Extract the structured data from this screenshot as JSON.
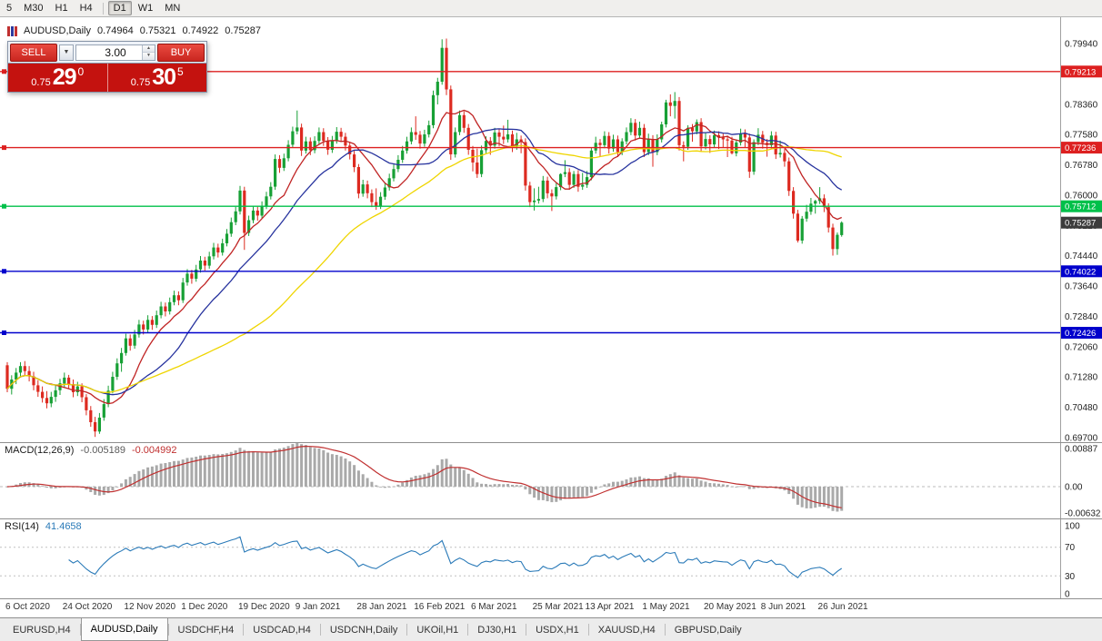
{
  "toolbar": {
    "timeframes": [
      "5",
      "M30",
      "H1",
      "H4",
      "D1",
      "W1",
      "MN"
    ],
    "active": "D1",
    "group_break_after": "H4"
  },
  "chart": {
    "ohlc_line": {
      "symbol": "AUDUSD,Daily",
      "open": "0.74964",
      "high": "0.75321",
      "low": "0.74922",
      "close": "0.75287"
    }
  },
  "trade_panel": {
    "sell_label": "SELL",
    "buy_label": "BUY",
    "volume": "3.00",
    "sell_price_main": "0.75",
    "sell_price_big": "29",
    "sell_price_sup": "0",
    "buy_price_main": "0.75",
    "buy_price_big": "30",
    "buy_price_sup": "5"
  },
  "indicators": {
    "macd": {
      "label": "MACD(12,26,9)",
      "main_value": "-0.005189",
      "signal_value": "-0.004992"
    },
    "rsi": {
      "label": "RSI(14)",
      "value": "41.4658"
    }
  },
  "tabs": {
    "items": [
      "EURUSD,H4",
      "AUDUSD,Daily",
      "USDCHF,H4",
      "USDCAD,H4",
      "USDCNH,Daily",
      "UKOil,H1",
      "DJ30,H1",
      "USDX,H1",
      "XAUUSD,H4",
      "GBPUSD,Daily"
    ],
    "active": "AUDUSD,Daily"
  },
  "chart_data": {
    "type": "candlestick",
    "title": "AUDUSD,Daily",
    "x_tick_labels": [
      "6 Oct 2020",
      "24 Oct 2020",
      "12 Nov 2020",
      "1 Dec 2020",
      "19 Dec 2020",
      "9 Jan 2021",
      "28 Jan 2021",
      "16 Feb 2021",
      "6 Mar 2021",
      "25 Mar 2021",
      "13 Apr 2021",
      "1 May 2021",
      "20 May 2021",
      "8 Jun 2021",
      "26 Jun 2021"
    ],
    "x_tick_indices": [
      0,
      13,
      27,
      40,
      53,
      66,
      80,
      93,
      106,
      120,
      132,
      145,
      159,
      172,
      185
    ],
    "y_axis": {
      "min": 0.697,
      "max": 0.7994,
      "tick_labels": [
        "0.79940",
        "0.79240",
        "0.78360",
        "0.77580",
        "0.76780",
        "0.76000",
        "0.75220",
        "0.74440",
        "0.73640",
        "0.72840",
        "0.72060",
        "0.71280",
        "0.70480",
        "0.69700"
      ]
    },
    "up_color": "#17a035",
    "down_color": "#dd2a20",
    "moving_averages": [
      {
        "name": "MA-fast",
        "period": 10,
        "color": "#c02424"
      },
      {
        "name": "MA-mid",
        "period": 21,
        "color": "#27339e"
      },
      {
        "name": "MA-slow",
        "period": 55,
        "color": "#efd500"
      }
    ],
    "hlines": [
      {
        "price": 0.79213,
        "label": "0.79213",
        "color": "#dd2020"
      },
      {
        "price": 0.77236,
        "label": "0.77236",
        "color": "#dd2020"
      },
      {
        "price": 0.75712,
        "label": "0.75712",
        "color": "#00c04a"
      },
      {
        "price": 0.74022,
        "label": "0.74022",
        "color": "#0000cc"
      },
      {
        "price": 0.72426,
        "label": "0.72426",
        "color": "#0000cc"
      }
    ],
    "current_price": {
      "value": 0.75287,
      "label": "0.75287",
      "bg": "#3c3c3c"
    },
    "macd": {
      "params": [
        12,
        26,
        9
      ],
      "hist_color": "#a9a9a9",
      "signal_color": "#c03030",
      "axis_ticks": [
        0.00887,
        0,
        -0.00632
      ],
      "axis_labels": [
        "0.00887",
        "0.00",
        "-0.00632"
      ]
    },
    "rsi": {
      "period": 14,
      "color": "#2a7ab8",
      "levels": [
        70,
        30
      ],
      "axis_ticks": [
        100,
        70,
        30,
        0
      ],
      "axis_labels": [
        "100",
        "70",
        "30",
        "0"
      ]
    },
    "ohlc": [
      [
        0.7158,
        0.7166,
        0.7088,
        0.7097
      ],
      [
        0.7097,
        0.7132,
        0.7082,
        0.7121
      ],
      [
        0.7121,
        0.7151,
        0.7109,
        0.7139
      ],
      [
        0.7139,
        0.7166,
        0.7126,
        0.7156
      ],
      [
        0.7156,
        0.7169,
        0.7131,
        0.7143
      ],
      [
        0.7143,
        0.7156,
        0.7116,
        0.7129
      ],
      [
        0.7129,
        0.7141,
        0.7093,
        0.7106
      ],
      [
        0.7106,
        0.7119,
        0.7076,
        0.7089
      ],
      [
        0.7089,
        0.7103,
        0.7061,
        0.7073
      ],
      [
        0.7073,
        0.7091,
        0.7046,
        0.7059
      ],
      [
        0.7059,
        0.7089,
        0.7049,
        0.7076
      ],
      [
        0.7076,
        0.7106,
        0.7063,
        0.7093
      ],
      [
        0.7093,
        0.7123,
        0.7081,
        0.7111
      ],
      [
        0.7111,
        0.7139,
        0.7099,
        0.7126
      ],
      [
        0.7126,
        0.7133,
        0.7098,
        0.7109
      ],
      [
        0.7109,
        0.7121,
        0.7075,
        0.7088
      ],
      [
        0.7088,
        0.7115,
        0.7078,
        0.7103
      ],
      [
        0.7103,
        0.7111,
        0.7062,
        0.7075
      ],
      [
        0.7075,
        0.7083,
        0.7028,
        0.7041
      ],
      [
        0.7041,
        0.7052,
        0.6998,
        0.701
      ],
      [
        0.701,
        0.7024,
        0.6972,
        0.6986
      ],
      [
        0.6986,
        0.7034,
        0.698,
        0.7022
      ],
      [
        0.7022,
        0.707,
        0.7014,
        0.7057
      ],
      [
        0.7057,
        0.7105,
        0.7049,
        0.7092
      ],
      [
        0.7092,
        0.7141,
        0.7085,
        0.7128
      ],
      [
        0.7128,
        0.7176,
        0.712,
        0.7163
      ],
      [
        0.7163,
        0.7203,
        0.7141,
        0.719
      ],
      [
        0.719,
        0.724,
        0.7183,
        0.7228
      ],
      [
        0.7228,
        0.7238,
        0.7196,
        0.7209
      ],
      [
        0.7209,
        0.725,
        0.7201,
        0.7238
      ],
      [
        0.7238,
        0.7276,
        0.723,
        0.7264
      ],
      [
        0.7264,
        0.7274,
        0.7238,
        0.7251
      ],
      [
        0.7251,
        0.7288,
        0.7243,
        0.7276
      ],
      [
        0.7276,
        0.7286,
        0.725,
        0.7263
      ],
      [
        0.7263,
        0.73,
        0.7255,
        0.7288
      ],
      [
        0.7288,
        0.7323,
        0.728,
        0.7311
      ],
      [
        0.7311,
        0.7321,
        0.7285,
        0.7298
      ],
      [
        0.7298,
        0.7334,
        0.729,
        0.7322
      ],
      [
        0.7322,
        0.7352,
        0.7314,
        0.734
      ],
      [
        0.734,
        0.735,
        0.7314,
        0.7327
      ],
      [
        0.7327,
        0.7385,
        0.732,
        0.7373
      ],
      [
        0.7373,
        0.7408,
        0.7365,
        0.7396
      ],
      [
        0.7396,
        0.7406,
        0.737,
        0.7383
      ],
      [
        0.7383,
        0.7419,
        0.7375,
        0.7407
      ],
      [
        0.7407,
        0.7442,
        0.7399,
        0.743
      ],
      [
        0.743,
        0.744,
        0.7404,
        0.7417
      ],
      [
        0.7417,
        0.7453,
        0.7409,
        0.7441
      ],
      [
        0.7441,
        0.7476,
        0.7433,
        0.7464
      ],
      [
        0.7464,
        0.7474,
        0.7438,
        0.7451
      ],
      [
        0.7451,
        0.7487,
        0.7443,
        0.7475
      ],
      [
        0.7475,
        0.7512,
        0.7467,
        0.75
      ],
      [
        0.75,
        0.7542,
        0.7492,
        0.753
      ],
      [
        0.753,
        0.757,
        0.7522,
        0.7558
      ],
      [
        0.7558,
        0.7624,
        0.755,
        0.7612
      ],
      [
        0.7612,
        0.7622,
        0.7458,
        0.7502
      ],
      [
        0.7502,
        0.7547,
        0.7494,
        0.7535
      ],
      [
        0.7535,
        0.7572,
        0.7527,
        0.756
      ],
      [
        0.756,
        0.757,
        0.7534,
        0.7547
      ],
      [
        0.7547,
        0.7584,
        0.7539,
        0.7572
      ],
      [
        0.7572,
        0.7609,
        0.7564,
        0.7597
      ],
      [
        0.7597,
        0.7634,
        0.7589,
        0.7622
      ],
      [
        0.7622,
        0.7706,
        0.7614,
        0.7694
      ],
      [
        0.7694,
        0.7704,
        0.7658,
        0.7671
      ],
      [
        0.7671,
        0.7708,
        0.7663,
        0.7696
      ],
      [
        0.7696,
        0.7743,
        0.7688,
        0.7731
      ],
      [
        0.7731,
        0.7778,
        0.7723,
        0.7766
      ],
      [
        0.7766,
        0.782,
        0.7758,
        0.7776
      ],
      [
        0.7776,
        0.7786,
        0.7702,
        0.7716
      ],
      [
        0.7716,
        0.7752,
        0.7708,
        0.774
      ],
      [
        0.774,
        0.775,
        0.7704,
        0.7717
      ],
      [
        0.7717,
        0.7753,
        0.7709,
        0.7741
      ],
      [
        0.7741,
        0.7776,
        0.7733,
        0.7764
      ],
      [
        0.7764,
        0.7774,
        0.7728,
        0.7741
      ],
      [
        0.7741,
        0.7751,
        0.7705,
        0.7718
      ],
      [
        0.7718,
        0.7754,
        0.771,
        0.7742
      ],
      [
        0.7742,
        0.7777,
        0.7734,
        0.7765
      ],
      [
        0.7765,
        0.7775,
        0.7739,
        0.7752
      ],
      [
        0.7752,
        0.7762,
        0.7716,
        0.7729
      ],
      [
        0.7729,
        0.7739,
        0.7693,
        0.7706
      ],
      [
        0.7706,
        0.7716,
        0.766,
        0.7673
      ],
      [
        0.7673,
        0.7681,
        0.7592,
        0.7604
      ],
      [
        0.7604,
        0.764,
        0.7596,
        0.7628
      ],
      [
        0.7628,
        0.7638,
        0.7592,
        0.7605
      ],
      [
        0.7605,
        0.7615,
        0.7569,
        0.7582
      ],
      [
        0.7582,
        0.7618,
        0.7562,
        0.7572
      ],
      [
        0.7572,
        0.7608,
        0.7564,
        0.7596
      ],
      [
        0.7596,
        0.7632,
        0.7588,
        0.762
      ],
      [
        0.762,
        0.7656,
        0.7612,
        0.7644
      ],
      [
        0.7644,
        0.768,
        0.7636,
        0.7668
      ],
      [
        0.7668,
        0.7704,
        0.766,
        0.7692
      ],
      [
        0.7692,
        0.7728,
        0.7684,
        0.7716
      ],
      [
        0.7716,
        0.7752,
        0.7708,
        0.774
      ],
      [
        0.774,
        0.7776,
        0.7732,
        0.7764
      ],
      [
        0.7764,
        0.7805,
        0.7744,
        0.7757
      ],
      [
        0.7757,
        0.7767,
        0.7721,
        0.7734
      ],
      [
        0.7734,
        0.777,
        0.7726,
        0.7758
      ],
      [
        0.7758,
        0.7794,
        0.775,
        0.7782
      ],
      [
        0.7782,
        0.7872,
        0.7774,
        0.786
      ],
      [
        0.786,
        0.7905,
        0.7836,
        0.7895
      ],
      [
        0.7895,
        0.8005,
        0.7887,
        0.7983
      ],
      [
        0.7983,
        0.8007,
        0.786,
        0.7875
      ],
      [
        0.7875,
        0.7885,
        0.7692,
        0.7706
      ],
      [
        0.7706,
        0.7776,
        0.7698,
        0.7764
      ],
      [
        0.7764,
        0.782,
        0.7756,
        0.7808
      ],
      [
        0.7808,
        0.7818,
        0.7762,
        0.7775
      ],
      [
        0.7775,
        0.7785,
        0.7705,
        0.7718
      ],
      [
        0.7718,
        0.7728,
        0.7662,
        0.7685
      ],
      [
        0.7685,
        0.7721,
        0.7645,
        0.7655
      ],
      [
        0.7655,
        0.7729,
        0.7647,
        0.7717
      ],
      [
        0.7717,
        0.7753,
        0.7709,
        0.7741
      ],
      [
        0.7741,
        0.7751,
        0.7705,
        0.7729
      ],
      [
        0.7729,
        0.7775,
        0.7721,
        0.7763
      ],
      [
        0.7763,
        0.7773,
        0.7727,
        0.7752
      ],
      [
        0.7752,
        0.7781,
        0.7733,
        0.7745
      ],
      [
        0.7745,
        0.7796,
        0.7737,
        0.7758
      ],
      [
        0.7758,
        0.7768,
        0.7712,
        0.7726
      ],
      [
        0.7726,
        0.7762,
        0.7718,
        0.7745
      ],
      [
        0.7745,
        0.7755,
        0.7709,
        0.7738
      ],
      [
        0.7738,
        0.7748,
        0.7612,
        0.7625
      ],
      [
        0.7625,
        0.7635,
        0.7569,
        0.7582
      ],
      [
        0.7582,
        0.7618,
        0.756,
        0.7586
      ],
      [
        0.7586,
        0.7622,
        0.7578,
        0.759
      ],
      [
        0.759,
        0.765,
        0.7582,
        0.7638
      ],
      [
        0.7638,
        0.7648,
        0.7592,
        0.7605
      ],
      [
        0.7605,
        0.7615,
        0.7559,
        0.7597
      ],
      [
        0.7597,
        0.7633,
        0.7589,
        0.7621
      ],
      [
        0.7621,
        0.7657,
        0.7613,
        0.7655
      ],
      [
        0.7655,
        0.7691,
        0.7647,
        0.766
      ],
      [
        0.766,
        0.767,
        0.7614,
        0.7627
      ],
      [
        0.7627,
        0.7663,
        0.7619,
        0.7655
      ],
      [
        0.7655,
        0.7665,
        0.7609,
        0.7622
      ],
      [
        0.7622,
        0.7658,
        0.7614,
        0.7627
      ],
      [
        0.7627,
        0.7663,
        0.7619,
        0.7647
      ],
      [
        0.7647,
        0.7723,
        0.7639,
        0.7716
      ],
      [
        0.7716,
        0.7752,
        0.7708,
        0.7736
      ],
      [
        0.7736,
        0.7746,
        0.77,
        0.773
      ],
      [
        0.773,
        0.7766,
        0.7722,
        0.7754
      ],
      [
        0.7754,
        0.7764,
        0.7708,
        0.7721
      ],
      [
        0.7721,
        0.7757,
        0.7713,
        0.7745
      ],
      [
        0.7745,
        0.7755,
        0.7699,
        0.7712
      ],
      [
        0.7712,
        0.7748,
        0.7704,
        0.774
      ],
      [
        0.774,
        0.7776,
        0.7732,
        0.7764
      ],
      [
        0.7764,
        0.78,
        0.7756,
        0.7788
      ],
      [
        0.7788,
        0.7798,
        0.7742,
        0.7755
      ],
      [
        0.7755,
        0.7791,
        0.7747,
        0.7775
      ],
      [
        0.7775,
        0.7785,
        0.7699,
        0.7712
      ],
      [
        0.7712,
        0.776,
        0.7704,
        0.7746
      ],
      [
        0.7746,
        0.7756,
        0.7674,
        0.7712
      ],
      [
        0.7712,
        0.7758,
        0.7704,
        0.7745
      ],
      [
        0.7745,
        0.7791,
        0.7737,
        0.7784
      ],
      [
        0.7784,
        0.7848,
        0.7776,
        0.7841
      ],
      [
        0.7841,
        0.7862,
        0.7805,
        0.7832
      ],
      [
        0.7832,
        0.7868,
        0.7799,
        0.7845
      ],
      [
        0.7845,
        0.7855,
        0.7716,
        0.773
      ],
      [
        0.773,
        0.774,
        0.7688,
        0.7726
      ],
      [
        0.7726,
        0.7782,
        0.7718,
        0.7775
      ],
      [
        0.7775,
        0.7785,
        0.7739,
        0.7766
      ],
      [
        0.7766,
        0.7797,
        0.7758,
        0.779
      ],
      [
        0.779,
        0.78,
        0.7714,
        0.7727
      ],
      [
        0.7727,
        0.7763,
        0.7719,
        0.7746
      ],
      [
        0.7746,
        0.7756,
        0.771,
        0.7732
      ],
      [
        0.7732,
        0.7768,
        0.7724,
        0.7756
      ],
      [
        0.7756,
        0.7766,
        0.772,
        0.775
      ],
      [
        0.775,
        0.776,
        0.7724,
        0.7745
      ],
      [
        0.7745,
        0.7755,
        0.7699,
        0.7742
      ],
      [
        0.7742,
        0.7752,
        0.7706,
        0.7709
      ],
      [
        0.7709,
        0.7745,
        0.7701,
        0.7737
      ],
      [
        0.7737,
        0.7773,
        0.7729,
        0.7761
      ],
      [
        0.7761,
        0.7771,
        0.7725,
        0.775
      ],
      [
        0.775,
        0.776,
        0.7645,
        0.7661
      ],
      [
        0.7661,
        0.7745,
        0.7653,
        0.7738
      ],
      [
        0.7738,
        0.7774,
        0.773,
        0.7757
      ],
      [
        0.7757,
        0.7767,
        0.7721,
        0.7736
      ],
      [
        0.7736,
        0.7746,
        0.77,
        0.773
      ],
      [
        0.773,
        0.7766,
        0.7722,
        0.7755
      ],
      [
        0.7755,
        0.7765,
        0.7694,
        0.7706
      ],
      [
        0.7706,
        0.7742,
        0.7698,
        0.771
      ],
      [
        0.771,
        0.772,
        0.7674,
        0.7688
      ],
      [
        0.7688,
        0.7698,
        0.7598,
        0.7611
      ],
      [
        0.7611,
        0.7621,
        0.7539,
        0.7552
      ],
      [
        0.7552,
        0.7562,
        0.7477,
        0.7482
      ],
      [
        0.7482,
        0.7546,
        0.7474,
        0.7539
      ],
      [
        0.7539,
        0.7575,
        0.7531,
        0.7557
      ],
      [
        0.7557,
        0.7593,
        0.7549,
        0.7578
      ],
      [
        0.7578,
        0.7588,
        0.7552,
        0.7585
      ],
      [
        0.7585,
        0.7621,
        0.7577,
        0.7592
      ],
      [
        0.7592,
        0.7602,
        0.7556,
        0.7569
      ],
      [
        0.7569,
        0.7579,
        0.7503,
        0.7516
      ],
      [
        0.7516,
        0.7526,
        0.7443,
        0.746
      ],
      [
        0.746,
        0.7503,
        0.7445,
        0.7497
      ],
      [
        0.74964,
        0.75321,
        0.74922,
        0.75287
      ]
    ]
  }
}
